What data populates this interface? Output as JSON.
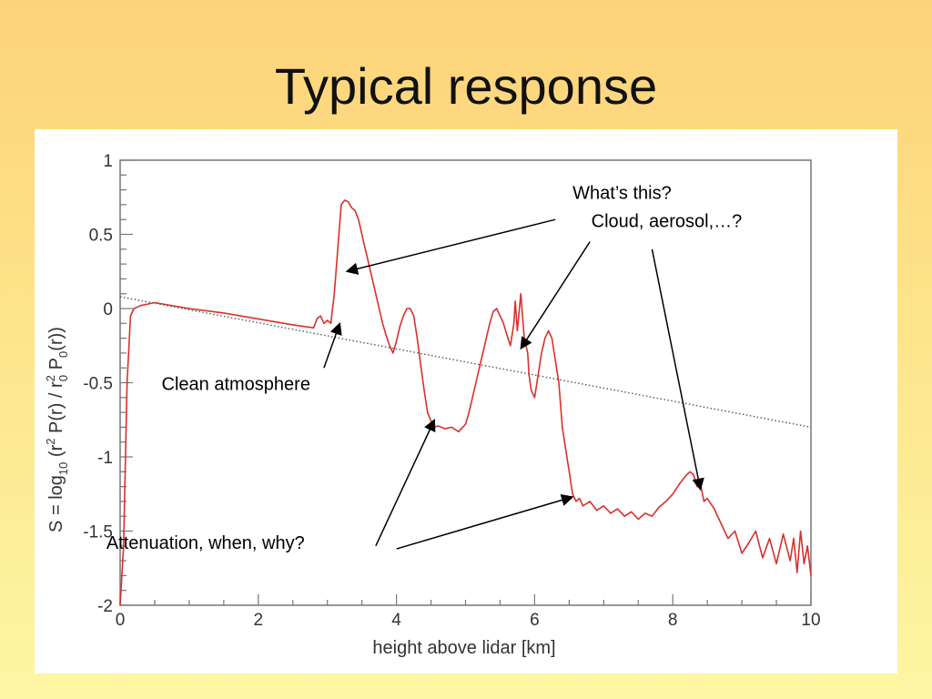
{
  "slide": {
    "title": "Typical response"
  },
  "chart_data": {
    "type": "line",
    "xlabel": "height above lidar [km]",
    "ylabel": "S = log10 (r2 P(r) / r02 P0(r))",
    "ylabel_parts": {
      "a": "S = log",
      "b": "10",
      "c": " (r",
      "d": "2",
      "e": " P(r) / r",
      "f": "2",
      "g": "0",
      "h": " P",
      "i": "0",
      "j": "(r))"
    },
    "xlim": [
      0,
      10
    ],
    "ylim": [
      -2,
      1
    ],
    "xticks": [
      "0",
      "2",
      "4",
      "6",
      "8",
      "10"
    ],
    "yticks": [
      "1",
      "0.5",
      "0",
      "-0.5",
      "-1",
      "-1.5",
      "-2"
    ],
    "grid": false,
    "series": [
      {
        "color": "#d9302c",
        "x": [
          0.0,
          0.05,
          0.1,
          0.15,
          0.2,
          0.3,
          0.5,
          1.0,
          1.5,
          2.0,
          2.5,
          2.8,
          2.85,
          2.9,
          2.95,
          3.0,
          3.05,
          3.1,
          3.15,
          3.2,
          3.25,
          3.3,
          3.35,
          3.4,
          3.45,
          3.5,
          3.55,
          3.6,
          3.65,
          3.7,
          3.75,
          3.8,
          3.85,
          3.9,
          3.95,
          4.0,
          4.05,
          4.1,
          4.15,
          4.2,
          4.25,
          4.3,
          4.35,
          4.4,
          4.45,
          4.5,
          4.55,
          4.6,
          4.7,
          4.8,
          4.9,
          5.0,
          5.05,
          5.1,
          5.15,
          5.2,
          5.25,
          5.3,
          5.35,
          5.4,
          5.45,
          5.5,
          5.55,
          5.6,
          5.65,
          5.7,
          5.72,
          5.75,
          5.8,
          5.85,
          5.9,
          5.92,
          5.95,
          6.0,
          6.05,
          6.1,
          6.15,
          6.2,
          6.25,
          6.3,
          6.35,
          6.4,
          6.45,
          6.5,
          6.55,
          6.6,
          6.65,
          6.7,
          6.8,
          6.9,
          7.0,
          7.1,
          7.2,
          7.3,
          7.4,
          7.5,
          7.6,
          7.7,
          7.8,
          7.9,
          8.0,
          8.1,
          8.2,
          8.25,
          8.3,
          8.35,
          8.4,
          8.45,
          8.5,
          8.6,
          8.7,
          8.8,
          8.9,
          9.0,
          9.1,
          9.2,
          9.3,
          9.4,
          9.5,
          9.6,
          9.7,
          9.75,
          9.8,
          9.85,
          9.9,
          9.95,
          10.0
        ],
        "y": [
          -2.0,
          -1.6,
          -0.5,
          -0.05,
          0.0,
          0.02,
          0.04,
          0.0,
          -0.03,
          -0.07,
          -0.11,
          -0.13,
          -0.07,
          -0.05,
          -0.1,
          -0.08,
          -0.1,
          0.1,
          0.4,
          0.7,
          0.73,
          0.72,
          0.68,
          0.66,
          0.6,
          0.5,
          0.4,
          0.3,
          0.2,
          0.1,
          0.0,
          -0.1,
          -0.18,
          -0.25,
          -0.3,
          -0.22,
          -0.12,
          -0.05,
          0.0,
          0.0,
          -0.05,
          -0.2,
          -0.38,
          -0.55,
          -0.7,
          -0.76,
          -0.8,
          -0.79,
          -0.81,
          -0.8,
          -0.83,
          -0.78,
          -0.7,
          -0.6,
          -0.5,
          -0.4,
          -0.3,
          -0.2,
          -0.1,
          -0.02,
          0.0,
          -0.05,
          -0.1,
          -0.18,
          -0.25,
          -0.1,
          0.05,
          -0.15,
          0.1,
          -0.2,
          -0.3,
          -0.45,
          -0.55,
          -0.6,
          -0.45,
          -0.3,
          -0.2,
          -0.15,
          -0.2,
          -0.35,
          -0.5,
          -0.8,
          -0.95,
          -1.1,
          -1.25,
          -1.3,
          -1.28,
          -1.33,
          -1.3,
          -1.36,
          -1.33,
          -1.38,
          -1.35,
          -1.4,
          -1.37,
          -1.42,
          -1.38,
          -1.4,
          -1.34,
          -1.3,
          -1.25,
          -1.18,
          -1.12,
          -1.1,
          -1.12,
          -1.2,
          -1.18,
          -1.3,
          -1.28,
          -1.35,
          -1.45,
          -1.55,
          -1.5,
          -1.65,
          -1.58,
          -1.5,
          -1.68,
          -1.55,
          -1.72,
          -1.52,
          -1.7,
          -1.55,
          -1.78,
          -1.5,
          -1.72,
          -1.6,
          -1.8
        ]
      },
      {
        "color": "#555555",
        "style": "dotted",
        "x": [
          0.0,
          10.0
        ],
        "y": [
          0.08,
          -0.8
        ]
      }
    ],
    "annotations": [
      {
        "text": "What’s this?",
        "x": 6.55,
        "y": 0.74,
        "arrow_from": [
          6.3,
          0.6
        ],
        "arrow_to": [
          3.28,
          0.25
        ]
      },
      {
        "text": "Cloud, aerosol,…?",
        "x": 6.82,
        "y": 0.55,
        "arrow_from": [
          6.8,
          0.45
        ],
        "arrow_to": [
          5.8,
          -0.27
        ]
      },
      {
        "text": "",
        "arrow_from": [
          7.7,
          0.4
        ],
        "arrow_to": [
          8.4,
          -1.22
        ]
      },
      {
        "text": "Clean atmosphere",
        "x": 0.6,
        "y": -0.55,
        "arrow_from": [
          2.95,
          -0.4
        ],
        "arrow_to": [
          3.18,
          -0.1
        ]
      },
      {
        "text": "Attenuation, when, why?",
        "x": -0.2,
        "y": -1.62,
        "arrow_from": [
          3.7,
          -1.6
        ],
        "arrow_to": [
          4.55,
          -0.75
        ]
      },
      {
        "text": "",
        "arrow_from": [
          4.0,
          -1.62
        ],
        "arrow_to": [
          6.55,
          -1.27
        ]
      }
    ]
  }
}
